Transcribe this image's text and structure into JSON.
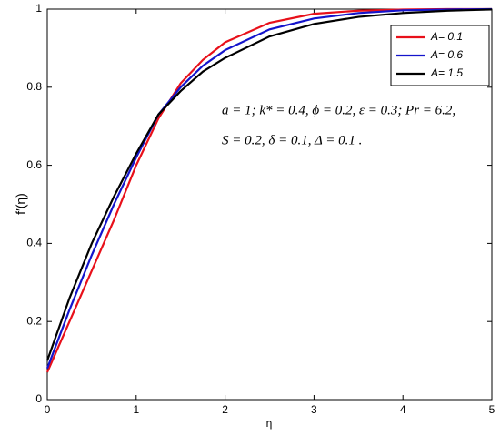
{
  "chart_data": {
    "type": "line",
    "xlabel": "η",
    "ylabel": "f′(η)",
    "x": [
      0,
      0.25,
      0.5,
      0.75,
      1,
      1.25,
      1.5,
      1.75,
      2,
      2.5,
      3,
      3.5,
      4,
      4.5,
      5
    ],
    "series": [
      {
        "name": "A= 0.1",
        "color": "#e8101a",
        "values": [
          0.07,
          0.2,
          0.33,
          0.46,
          0.6,
          0.72,
          0.81,
          0.87,
          0.915,
          0.965,
          0.988,
          0.996,
          0.999,
          1,
          1
        ]
      },
      {
        "name": "A= 0.6",
        "color": "#1414cc",
        "values": [
          0.08,
          0.23,
          0.37,
          0.5,
          0.62,
          0.73,
          0.8,
          0.855,
          0.895,
          0.948,
          0.976,
          0.99,
          0.997,
          0.999,
          1
        ]
      },
      {
        "name": "A= 1.5",
        "color": "#000000",
        "values": [
          0.1,
          0.26,
          0.4,
          0.52,
          0.63,
          0.73,
          0.79,
          0.84,
          0.875,
          0.93,
          0.962,
          0.98,
          0.99,
          0.996,
          0.999
        ]
      }
    ],
    "annotations": [
      "a = 1; k* = 0.4, ϕ = 0.2, ε = 0.3; Pr = 6.2,",
      "S = 0.2, δ = 0.1, Δ = 0.1 ."
    ],
    "xlim": [
      0,
      5
    ],
    "ylim": [
      0,
      1
    ],
    "xticks": [
      0,
      1,
      2,
      3,
      4,
      5
    ],
    "yticks": [
      0,
      0.2,
      0.4,
      0.6,
      0.8,
      1
    ],
    "grid": false,
    "legend": "upper right"
  }
}
